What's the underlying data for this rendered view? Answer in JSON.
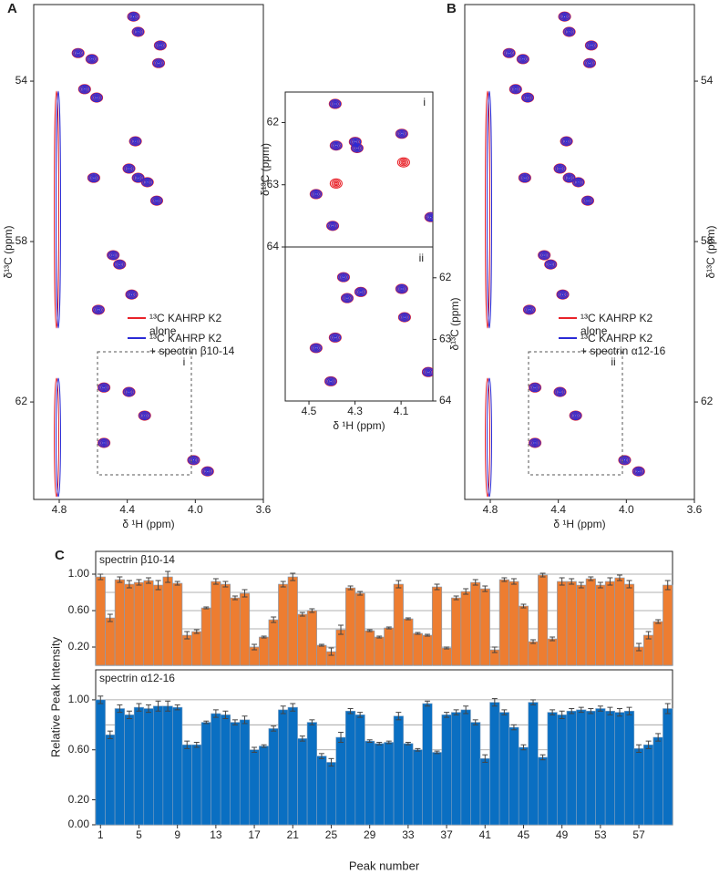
{
  "chart_data": [
    {
      "type": "contour",
      "panel": "A",
      "xlabel": "δ ¹H  (ppm)",
      "ylabel": "δ¹³C  (ppm)",
      "box_label": "i",
      "xlim": [
        4.95,
        3.6
      ],
      "ylim": [
        64.43,
        52.09
      ],
      "xticks": [
        4.8,
        4.4,
        {
          "value": 4,
          "label": "4.0"
        },
        3.6
      ],
      "yticks": [
        54,
        58,
        62
      ],
      "series": [
        {
          "name": "¹³C KAHRP K2\nalone",
          "color": "#e8232a",
          "x": [
            4.363,
            4.336,
            4.206,
            4.216,
            4.689,
            4.608,
            4.651,
            4.58,
            4.352,
            4.597,
            4.39,
            4.336,
            4.282,
            4.227,
            4.483,
            4.445,
            4.374,
            4.57,
            4.537,
            4.39,
            4.298,
            4.537,
            4.01,
            3.928
          ],
          "y": [
            52.39,
            52.77,
            53.11,
            53.55,
            53.3,
            53.45,
            54.2,
            54.41,
            55.5,
            56.41,
            56.18,
            56.41,
            56.52,
            56.98,
            58.34,
            58.57,
            59.32,
            59.7,
            61.64,
            61.75,
            62.34,
            63.02,
            63.45,
            63.73
          ]
        },
        {
          "name": "¹³C KAHRP K2\n+ spectrin β10-14",
          "color": "#2b2bd6",
          "x": [
            4.363,
            4.336,
            4.206,
            4.216,
            4.689,
            4.608,
            4.651,
            4.58,
            4.352,
            4.597,
            4.39,
            4.336,
            4.282,
            4.227,
            4.483,
            4.445,
            4.374,
            4.57,
            4.537,
            4.39,
            4.298,
            4.537,
            4.01,
            3.928
          ],
          "y": [
            52.39,
            52.77,
            53.11,
            53.55,
            53.3,
            53.45,
            54.2,
            54.41,
            55.5,
            56.41,
            56.18,
            56.41,
            56.52,
            56.98,
            58.34,
            58.57,
            59.32,
            59.7,
            61.64,
            61.75,
            62.34,
            63.02,
            63.45,
            63.73
          ]
        }
      ]
    },
    {
      "type": "contour",
      "ylabel": "δ¹³C  (ppm)",
      "box_label": "i",
      "xlim": [
        4.603,
        3.962
      ],
      "ylim": [
        64,
        61.51
      ],
      "yticks": [
        62,
        63,
        64
      ],
      "series": [
        {
          "color": "#e8232a",
          "x": [
            4.386,
            4.382,
            4.299,
            4.291,
            4.097,
            4.089,
            4.469,
            4.382,
            4.397,
            3.971
          ],
          "y": [
            61.7,
            62.37,
            62.31,
            62.41,
            62.18,
            62.64,
            63.15,
            62.98,
            63.66,
            63.52
          ]
        },
        {
          "color": "#2b2bd6",
          "x": [
            4.386,
            4.382,
            4.299,
            4.291,
            4.097,
            4.469,
            4.397,
            3.971
          ],
          "y": [
            61.7,
            62.37,
            62.31,
            62.41,
            62.18,
            63.15,
            63.66,
            63.52
          ]
        }
      ]
    },
    {
      "type": "contour",
      "xlabel": "δ ¹H  (ppm)",
      "ylabel": "δ¹³C  (ppm)",
      "box_label": "ii",
      "xlim": [
        4.603,
        3.962
      ],
      "ylim": [
        64,
        61.5
      ],
      "xticks": [
        4.5,
        4.3,
        4.1
      ],
      "yticks": [
        62,
        63,
        64
      ],
      "series": [
        {
          "color": "#e8232a",
          "x": [
            4.35,
            4.334,
            4.275,
            4.097,
            4.085,
            4.469,
            4.386,
            4.405,
            3.982
          ],
          "y": [
            61.99,
            62.33,
            62.23,
            62.18,
            62.64,
            63.14,
            62.97,
            63.68,
            63.53
          ]
        },
        {
          "color": "#2b2bd6",
          "x": [
            4.35,
            4.334,
            4.275,
            4.097,
            4.085,
            4.469,
            4.386,
            4.405,
            3.982
          ],
          "y": [
            61.99,
            62.33,
            62.23,
            62.18,
            62.64,
            63.14,
            62.97,
            63.68,
            63.53
          ]
        }
      ]
    },
    {
      "type": "contour",
      "panel": "B",
      "xlabel": "δ ¹H  (ppm)",
      "ylabel": "δ¹³C  (ppm)",
      "box_label": "ii",
      "xlim": [
        4.95,
        3.6
      ],
      "ylim": [
        64.43,
        52.09
      ],
      "xticks": [
        4.8,
        4.4,
        {
          "value": 4,
          "label": "4.0"
        },
        3.6
      ],
      "yticks": [
        54,
        58,
        62
      ],
      "series": [
        {
          "name": "¹³C KAHRP K2\nalone",
          "color": "#e8232a",
          "x": [
            4.363,
            4.336,
            4.206,
            4.216,
            4.689,
            4.608,
            4.651,
            4.58,
            4.352,
            4.597,
            4.39,
            4.336,
            4.282,
            4.227,
            4.483,
            4.445,
            4.374,
            4.57,
            4.537,
            4.39,
            4.298,
            4.537,
            4.01,
            3.928
          ],
          "y": [
            52.39,
            52.77,
            53.11,
            53.55,
            53.3,
            53.45,
            54.2,
            54.41,
            55.5,
            56.41,
            56.18,
            56.41,
            56.52,
            56.98,
            58.34,
            58.57,
            59.32,
            59.7,
            61.64,
            61.75,
            62.34,
            63.02,
            63.45,
            63.73
          ]
        },
        {
          "name": "¹³C KAHRP K2\n+ spectrin α12-16",
          "color": "#2b2bd6",
          "x": [
            4.363,
            4.336,
            4.206,
            4.216,
            4.689,
            4.608,
            4.651,
            4.58,
            4.352,
            4.597,
            4.39,
            4.336,
            4.282,
            4.227,
            4.483,
            4.445,
            4.374,
            4.57,
            4.537,
            4.39,
            4.298,
            4.537,
            4.01,
            3.928
          ],
          "y": [
            52.39,
            52.77,
            53.11,
            53.55,
            53.3,
            53.45,
            54.2,
            54.41,
            55.5,
            56.41,
            56.18,
            56.41,
            56.52,
            56.98,
            58.34,
            58.57,
            59.32,
            59.7,
            61.64,
            61.75,
            62.34,
            63.02,
            63.45,
            63.73
          ]
        }
      ]
    },
    {
      "type": "bar",
      "panel": "C",
      "title": "spectrin β10-14",
      "color": "#ed7d31",
      "ylim": [
        0,
        1.25
      ],
      "yticks": [
        {
          "value": 0.2,
          "label": "0.20"
        },
        {
          "value": 0.6,
          "label": "0.60"
        },
        {
          "value": 1,
          "label": "1.00"
        }
      ],
      "ygrid": [
        0.2,
        0.4,
        0.6,
        0.8,
        1
      ],
      "values": [
        0.97,
        0.52,
        0.94,
        0.89,
        0.91,
        0.93,
        0.88,
        0.97,
        0.9,
        0.33,
        0.37,
        0.63,
        0.92,
        0.89,
        0.74,
        0.79,
        0.2,
        0.31,
        0.5,
        0.89,
        0.97,
        0.56,
        0.6,
        0.22,
        0.15,
        0.39,
        0.85,
        0.79,
        0.38,
        0.31,
        0.41,
        0.89,
        0.51,
        0.35,
        0.33,
        0.86,
        0.19,
        0.74,
        0.81,
        0.91,
        0.84,
        0.17,
        0.94,
        0.92,
        0.65,
        0.26,
        0.99,
        0.29,
        0.92,
        0.92,
        0.88,
        0.95,
        0.88,
        0.92,
        0.96,
        0.89,
        0.2,
        0.33,
        0.48,
        0.88
      ],
      "errors": [
        0.03,
        0.04,
        0.03,
        0.04,
        0.03,
        0.03,
        0.05,
        0.06,
        0.02,
        0.04,
        0.02,
        0.01,
        0.03,
        0.03,
        0.02,
        0.04,
        0.03,
        0.01,
        0.03,
        0.03,
        0.04,
        0.02,
        0.02,
        0.01,
        0.04,
        0.05,
        0.02,
        0.02,
        0.01,
        0.01,
        0.01,
        0.04,
        0.01,
        0.01,
        0.01,
        0.03,
        0.01,
        0.02,
        0.03,
        0.03,
        0.03,
        0.03,
        0.02,
        0.03,
        0.02,
        0.02,
        0.02,
        0.02,
        0.04,
        0.03,
        0.03,
        0.02,
        0.03,
        0.04,
        0.03,
        0.04,
        0.04,
        0.04,
        0.02,
        0.05
      ]
    },
    {
      "type": "bar",
      "title": "spectrin α12-16",
      "color": "#0a6fc2",
      "xlabel": "Peak number",
      "ylabel": "Relative Peak Intensity",
      "ylim": [
        0,
        1.24
      ],
      "yticks": [
        {
          "value": 0,
          "label": "0.00"
        },
        {
          "value": 0.2,
          "label": "0.20"
        },
        {
          "value": 0.6,
          "label": "0.60"
        },
        {
          "value": 1,
          "label": "1.00"
        }
      ],
      "ygrid": [
        0.2,
        0.4,
        0.6,
        0.8,
        1
      ],
      "categories": [
        1,
        null,
        null,
        null,
        5,
        null,
        null,
        null,
        9,
        null,
        null,
        null,
        13,
        null,
        null,
        null,
        17,
        null,
        null,
        null,
        21,
        null,
        null,
        null,
        25,
        null,
        null,
        null,
        29,
        null,
        null,
        null,
        33,
        null,
        null,
        null,
        37,
        null,
        null,
        null,
        41,
        null,
        null,
        null,
        45,
        null,
        null,
        null,
        49,
        null,
        null,
        null,
        53,
        null,
        null,
        null,
        57,
        null,
        null,
        null
      ],
      "values": [
        1.0,
        0.72,
        0.93,
        0.88,
        0.94,
        0.93,
        0.95,
        0.95,
        0.94,
        0.64,
        0.64,
        0.82,
        0.89,
        0.88,
        0.82,
        0.84,
        0.6,
        0.63,
        0.77,
        0.92,
        0.94,
        0.69,
        0.82,
        0.55,
        0.5,
        0.7,
        0.91,
        0.88,
        0.67,
        0.65,
        0.66,
        0.87,
        0.65,
        0.6,
        0.97,
        0.58,
        0.88,
        0.9,
        0.92,
        0.82,
        0.53,
        0.98,
        0.9,
        0.78,
        0.62,
        0.98,
        0.54,
        0.9,
        0.88,
        0.91,
        0.92,
        0.91,
        0.93,
        0.91,
        0.9,
        0.91,
        0.61,
        0.64,
        0.7,
        0.93
      ],
      "errors": [
        0.03,
        0.03,
        0.03,
        0.03,
        0.03,
        0.03,
        0.04,
        0.04,
        0.02,
        0.03,
        0.02,
        0.01,
        0.03,
        0.03,
        0.02,
        0.03,
        0.02,
        0.01,
        0.02,
        0.03,
        0.03,
        0.02,
        0.02,
        0.02,
        0.03,
        0.04,
        0.02,
        0.02,
        0.01,
        0.01,
        0.01,
        0.03,
        0.01,
        0.01,
        0.02,
        0.01,
        0.02,
        0.02,
        0.03,
        0.02,
        0.03,
        0.03,
        0.02,
        0.02,
        0.02,
        0.02,
        0.02,
        0.02,
        0.03,
        0.02,
        0.02,
        0.02,
        0.02,
        0.03,
        0.03,
        0.03,
        0.03,
        0.03,
        0.03,
        0.04
      ]
    }
  ]
}
